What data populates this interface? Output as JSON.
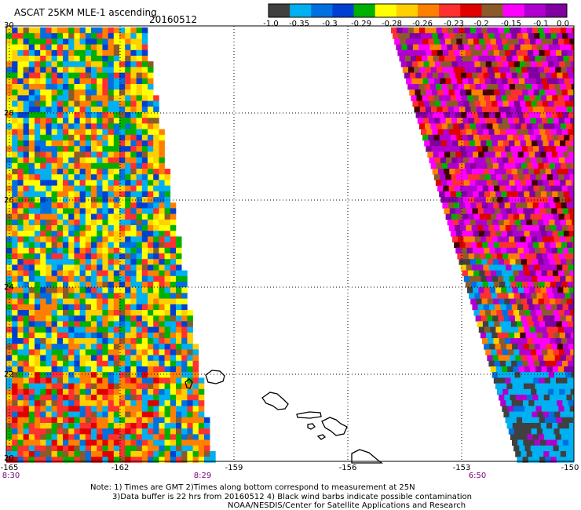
{
  "title": "ASCAT 25KM MLE-1 ascending",
  "date": "20160512",
  "colorbar": {
    "labels": [
      "-1.0",
      "-0.35",
      "-0.3",
      "-0.29",
      "-0.28",
      "-0.26",
      "-0.23",
      "-0.2",
      "-0.15",
      "-0.1",
      "0.0"
    ],
    "colors": [
      "#404040",
      "#00b0f0",
      "#0070e0",
      "#0040d0",
      "#00b000",
      "#ffff00",
      "#ffd000",
      "#ff8000",
      "#ff3030",
      "#e00000",
      "#8b5a2b",
      "#ff00ff",
      "#b000d0",
      "#8000a0"
    ]
  },
  "axes": {
    "lat_labels": [
      "30",
      "28",
      "26",
      "24",
      "22",
      "20"
    ],
    "lon_labels": [
      "-165",
      "-162",
      "-159",
      "-156",
      "-153",
      "-150"
    ]
  },
  "pass_times": [
    "8:30",
    "8:29",
    "6:50"
  ],
  "notes": [
    "Note: 1) Times are GMT 2)Times along bottom correspond to measurement at 25N",
    "3)Data buffer is 22 hrs from 20160512 4) Black wind barbs indicate possible contamination",
    "NOAA/NESDIS/Center for Satellite Applications and Research"
  ],
  "map_layers": {
    "left_swath": "MLE-1 values, mostly blue/yellow/green/orange",
    "right_swath": "MLE-1 values, mostly magenta/purple/red/brown",
    "coastline": "Hawaiian Islands outline"
  }
}
